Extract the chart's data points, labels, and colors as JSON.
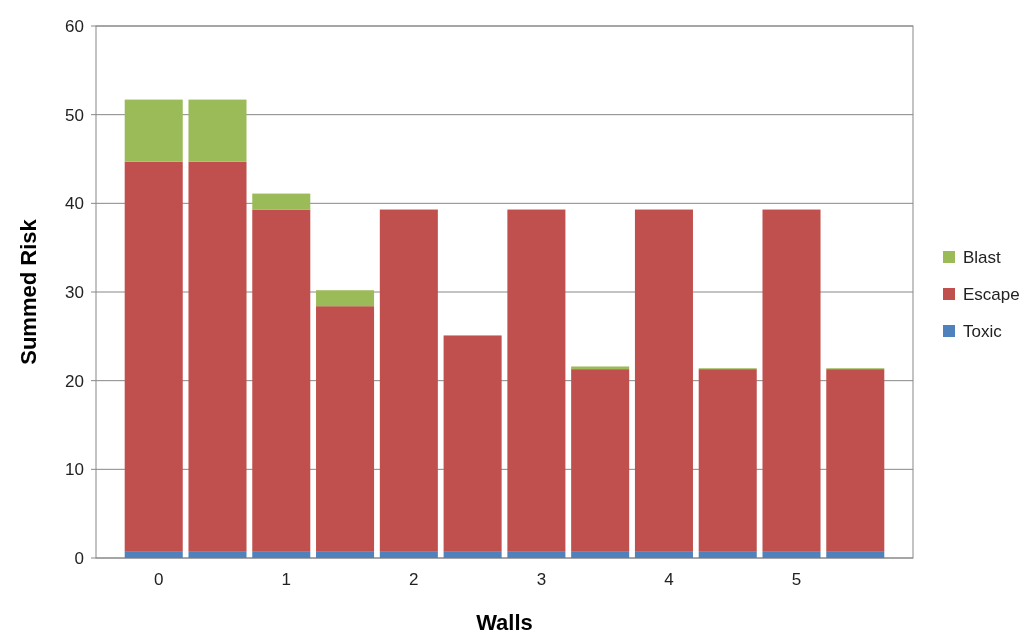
{
  "chart_data": {
    "type": "bar",
    "stacked": true,
    "xlabel": "Walls",
    "ylabel": "Summed Risk",
    "categories": [
      "0",
      null,
      "1",
      null,
      "2",
      null,
      "3",
      null,
      "4",
      null,
      "5",
      null
    ],
    "series": [
      {
        "name": "Toxic",
        "color": "#4f81bd",
        "values": [
          0.7,
          0.7,
          0.7,
          0.7,
          0.7,
          0.7,
          0.7,
          0.7,
          0.7,
          0.7,
          0.7,
          0.7
        ]
      },
      {
        "name": "Escape",
        "color": "#c0504d",
        "values": [
          44,
          44,
          38.6,
          27.7,
          38.6,
          24.4,
          38.6,
          20.6,
          38.6,
          20.6,
          38.6,
          20.6
        ]
      },
      {
        "name": "Blast",
        "color": "#9bbb59",
        "values": [
          7,
          7,
          1.8,
          1.8,
          0,
          0,
          0,
          0.3,
          0,
          0.1,
          0,
          0.1
        ]
      }
    ],
    "ylim": [
      0,
      60
    ],
    "yticks": [
      0,
      10,
      20,
      30,
      40,
      50,
      60
    ],
    "grid": "y",
    "legend": "right"
  }
}
